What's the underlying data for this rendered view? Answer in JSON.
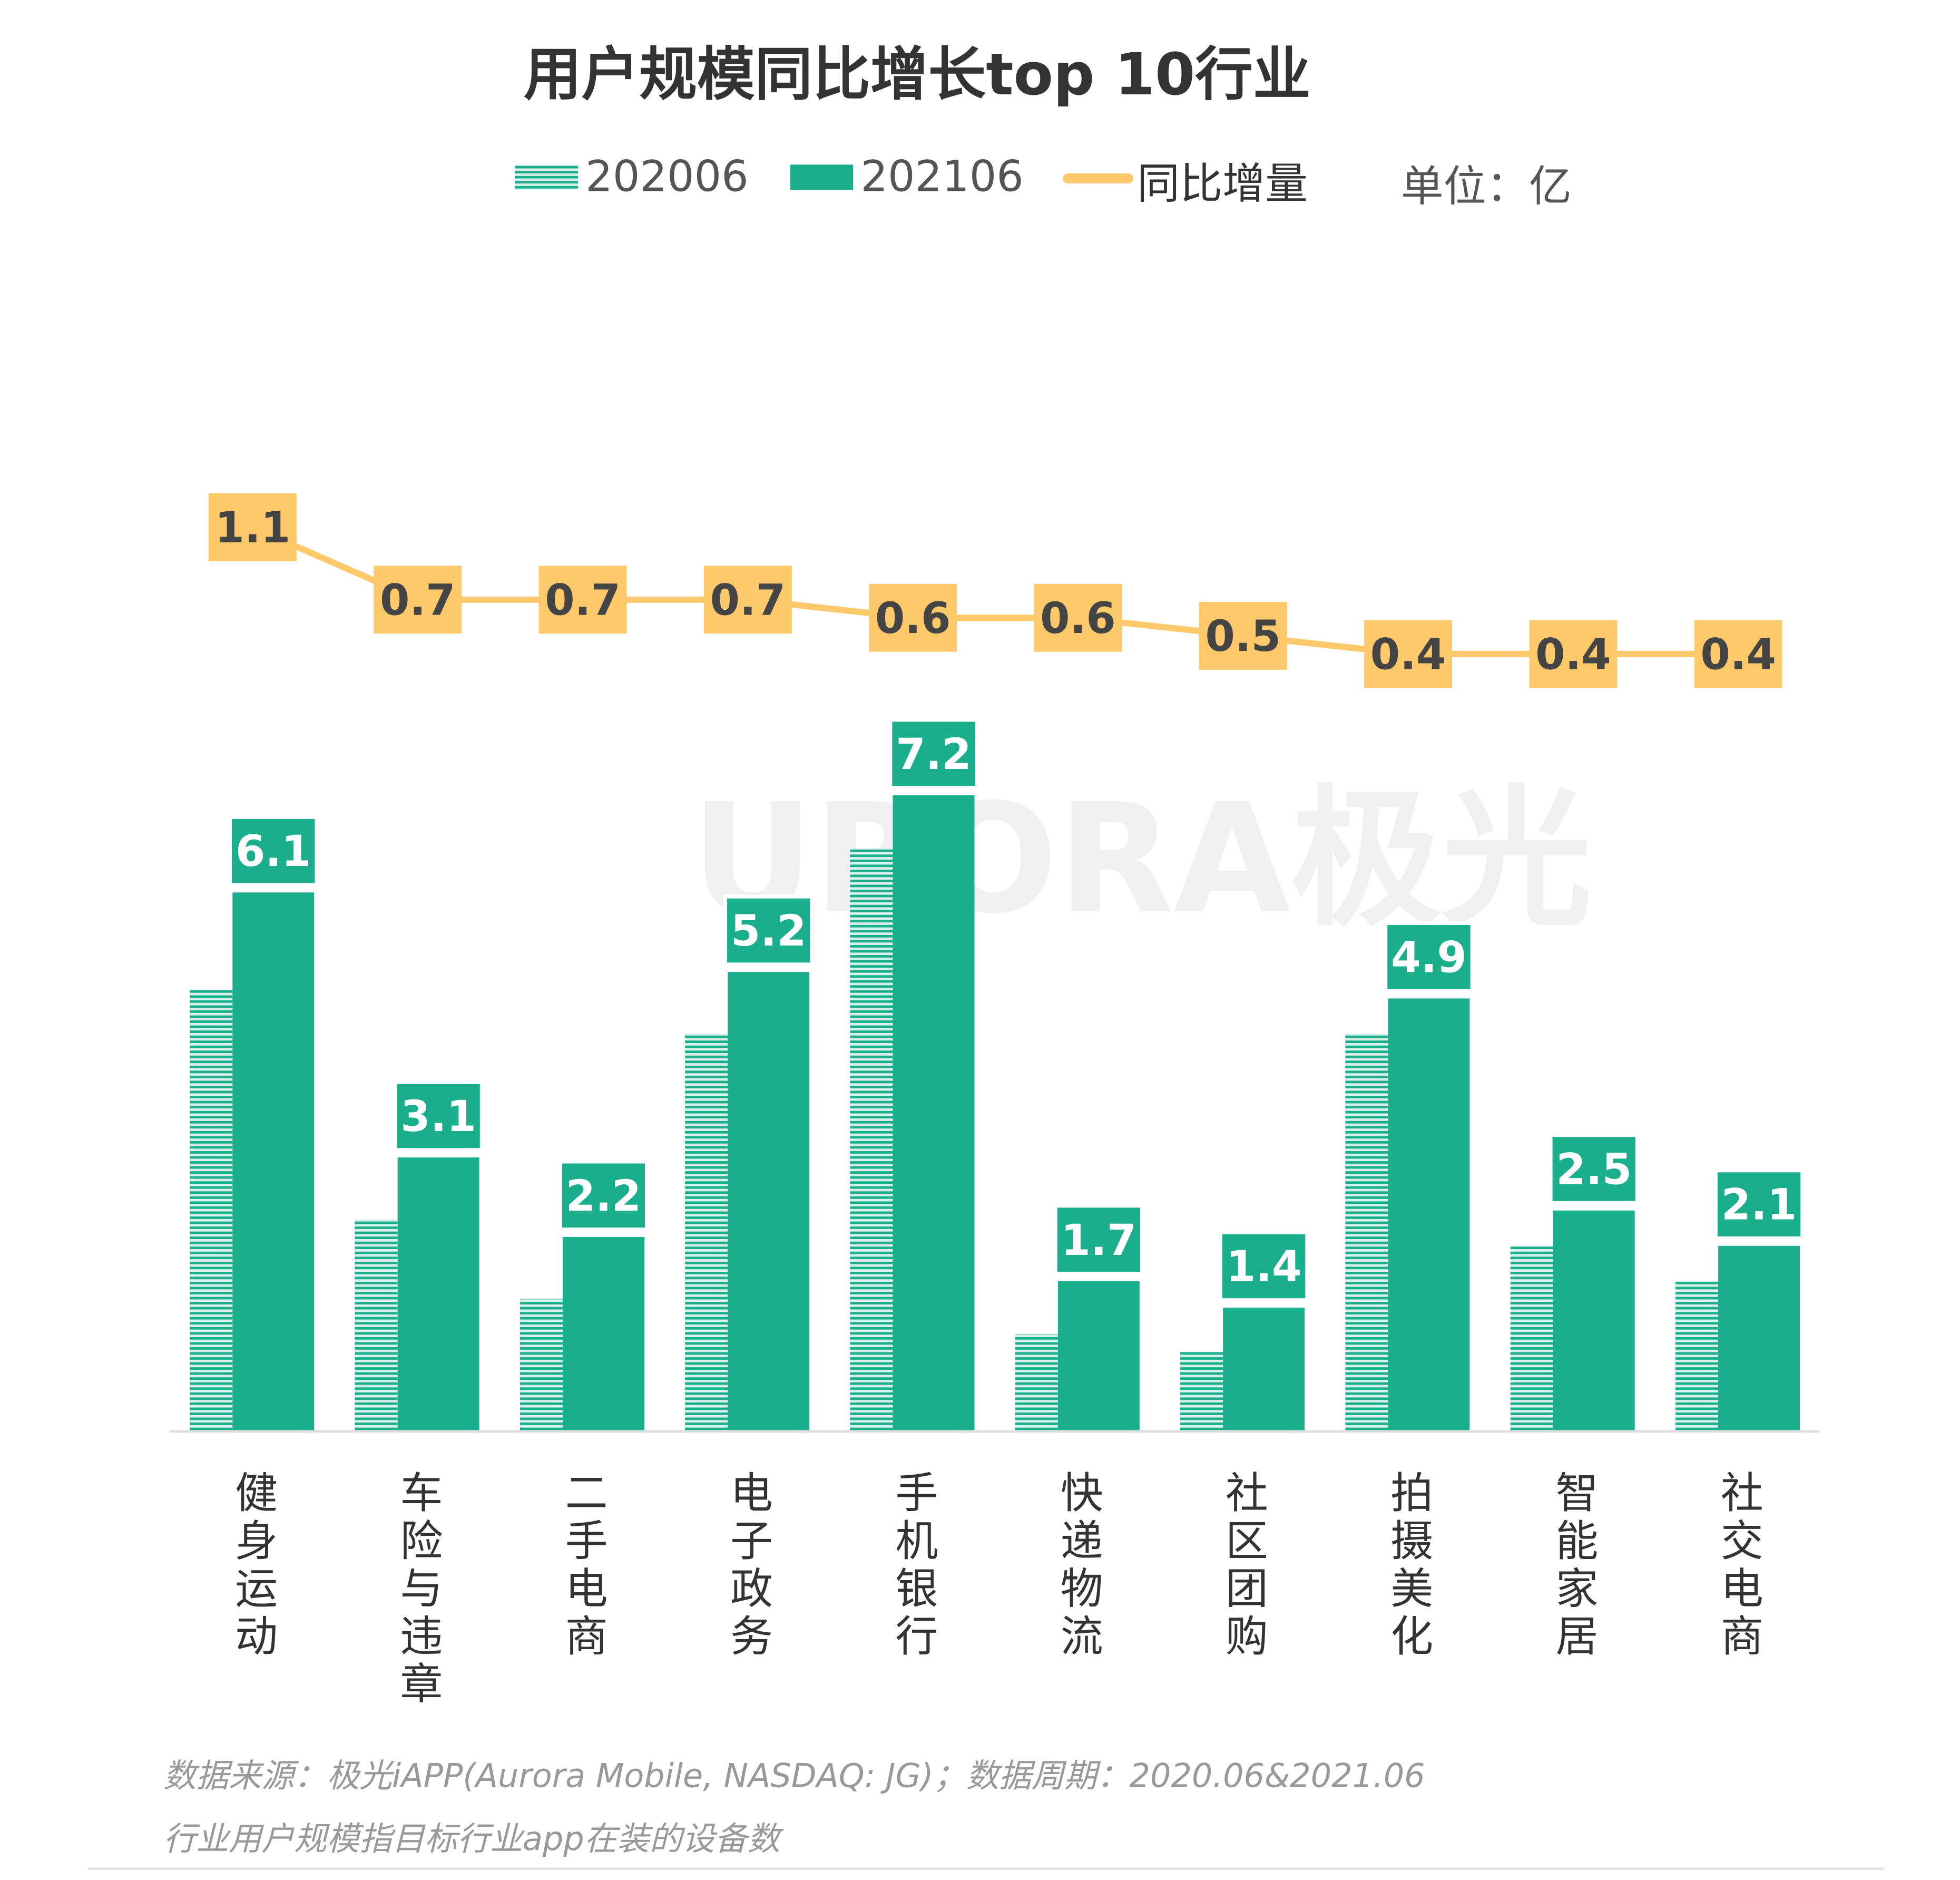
{
  "chart_data": {
    "type": "bar",
    "title": "用户规模同比增长top 10行业",
    "unit_label": "单位：亿",
    "categories": [
      "健身运动",
      "车险与违章",
      "二手电商",
      "电子政务",
      "手机银行",
      "快递物流",
      "社区团购",
      "拍摄美化",
      "智能家居",
      "社交电商"
    ],
    "series": [
      {
        "name": "202006",
        "type": "bar",
        "style": "hatched",
        "color": "#1aae8d",
        "values": [
          5.0,
          2.4,
          1.5,
          4.5,
          6.6,
          1.1,
          0.9,
          4.5,
          2.1,
          1.7
        ]
      },
      {
        "name": "202106",
        "type": "bar",
        "style": "solid",
        "color": "#1aae8d",
        "values": [
          6.1,
          3.1,
          2.2,
          5.2,
          7.2,
          1.7,
          1.4,
          4.9,
          2.5,
          2.1
        ]
      },
      {
        "name": "同比增量",
        "type": "line",
        "color": "#fdc96a",
        "values": [
          1.1,
          0.7,
          0.7,
          0.7,
          0.6,
          0.6,
          0.5,
          0.4,
          0.4,
          0.4
        ]
      }
    ],
    "legend_position": "top",
    "grid": false,
    "y_axis_visible": false
  },
  "watermark": "URORA极光",
  "footer": {
    "source": "数据来源：极光iAPP(Aurora Mobile, NASDAQ: JG)；数据周期：2020.06&2021.06",
    "note": "行业用户规模指目标行业app在装的设备数"
  }
}
